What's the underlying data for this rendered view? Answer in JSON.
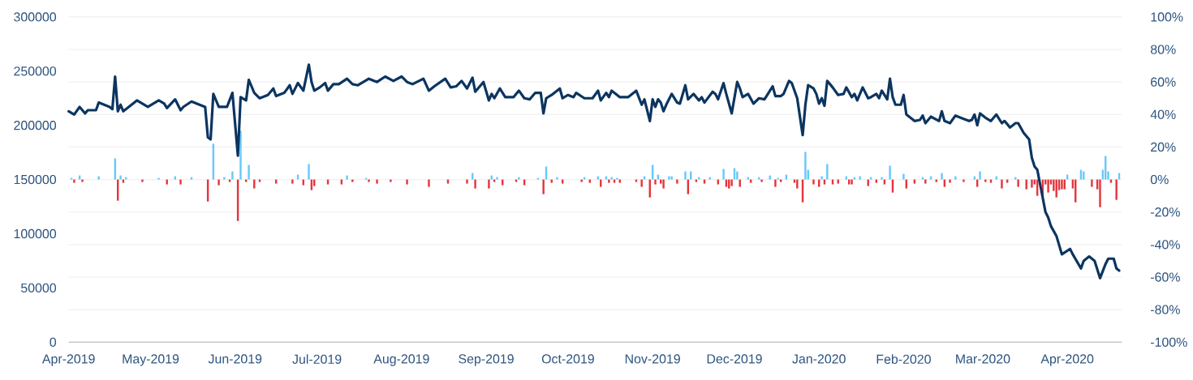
{
  "chart_data": {
    "type": "line",
    "xlim": [
      "2019-04-01",
      "2020-04-21"
    ],
    "xticks": [
      {
        "value": "2019-04-01",
        "label": "Apr-2019"
      },
      {
        "value": "2019-05-01",
        "label": "May-2019"
      },
      {
        "value": "2019-06-01",
        "label": "Jun-2019"
      },
      {
        "value": "2019-07-01",
        "label": "Jul-2019"
      },
      {
        "value": "2019-08-01",
        "label": "Aug-2019"
      },
      {
        "value": "2019-09-01",
        "label": "Sep-2019"
      },
      {
        "value": "2019-10-01",
        "label": "Oct-2019"
      },
      {
        "value": "2019-11-01",
        "label": "Nov-2019"
      },
      {
        "value": "2019-12-01",
        "label": "Dec-2019"
      },
      {
        "value": "2020-01-01",
        "label": "Jan-2020"
      },
      {
        "value": "2020-02-01",
        "label": "Feb-2020"
      },
      {
        "value": "2020-03-01",
        "label": "Mar-2020"
      },
      {
        "value": "2020-04-01",
        "label": "Apr-2020"
      }
    ],
    "ylim": [
      0,
      300000
    ],
    "yticks": [
      0,
      50000,
      100000,
      150000,
      200000,
      250000,
      300000
    ],
    "y2lim": [
      -100,
      100
    ],
    "y2ticks": [
      {
        "value": -100,
        "label": "-100%"
      },
      {
        "value": -80,
        "label": "-80%"
      },
      {
        "value": -60,
        "label": "-60%"
      },
      {
        "value": -40,
        "label": "-40%"
      },
      {
        "value": -20,
        "label": "-20%"
      },
      {
        "value": 0,
        "label": "0%"
      },
      {
        "value": 20,
        "label": "20%"
      },
      {
        "value": 40,
        "label": "40%"
      },
      {
        "value": 60,
        "label": "60%"
      },
      {
        "value": 80,
        "label": "80%"
      },
      {
        "value": 100,
        "label": "100%"
      }
    ],
    "grid": true,
    "series": [
      {
        "type": "bar",
        "axis": "y2",
        "color": "#66c9fb",
        "x": [
          "2019-04-02",
          "2019-04-05",
          "2019-04-12",
          "2019-04-18",
          "2019-04-20",
          "2019-04-22",
          "2019-05-04",
          "2019-05-10",
          "2019-05-16",
          "2019-05-24",
          "2019-05-28",
          "2019-05-31",
          "2019-06-03",
          "2019-06-06",
          "2019-06-24",
          "2019-06-28",
          "2019-07-12",
          "2019-07-19",
          "2019-08-27",
          "2019-09-03",
          "2019-09-05",
          "2019-09-13",
          "2019-09-20",
          "2019-09-23",
          "2019-09-27",
          "2019-10-07",
          "2019-10-12",
          "2019-10-15",
          "2019-10-17",
          "2019-10-19",
          "2019-10-29",
          "2019-11-01",
          "2019-11-03",
          "2019-11-07",
          "2019-11-08",
          "2019-11-13",
          "2019-11-15",
          "2019-11-18",
          "2019-11-22",
          "2019-11-27",
          "2019-12-01",
          "2019-12-02",
          "2019-12-06",
          "2019-12-10",
          "2019-12-14",
          "2019-12-17",
          "2019-12-20",
          "2019-12-27",
          "2019-12-28",
          "2020-01-02",
          "2020-01-04",
          "2020-01-11",
          "2020-01-14",
          "2020-01-16",
          "2020-01-20",
          "2020-01-24",
          "2020-01-27",
          "2020-02-01",
          "2020-02-08",
          "2020-02-11",
          "2020-02-15",
          "2020-02-20",
          "2020-02-27",
          "2020-02-29",
          "2020-03-06",
          "2020-03-13",
          "2020-04-01",
          "2020-04-06",
          "2020-04-07",
          "2020-04-14",
          "2020-04-15",
          "2020-04-16",
          "2020-04-20"
        ],
        "values": [
          1,
          2.5,
          2,
          13,
          2.5,
          1.5,
          1,
          2,
          1.5,
          22,
          1.5,
          5,
          30,
          9,
          3,
          9.5,
          2.5,
          1,
          4,
          2.5,
          1.5,
          1.5,
          1,
          8,
          1.5,
          1.5,
          2,
          2,
          1.5,
          1,
          2,
          9,
          3,
          2,
          2,
          5,
          5,
          1.5,
          1.5,
          6.5,
          7,
          5,
          1.5,
          1.5,
          2.5,
          1,
          3,
          17,
          6,
          2,
          9.5,
          2,
          1.5,
          2,
          1.5,
          1.5,
          8.5,
          3.5,
          1.5,
          2,
          4,
          2,
          2,
          5,
          2,
          1.5,
          3,
          6,
          5,
          6,
          14.5,
          5,
          4
        ]
      },
      {
        "type": "bar",
        "axis": "y2",
        "color": "#e5343d",
        "x": [
          "2019-04-03",
          "2019-04-06",
          "2019-04-19",
          "2019-04-21",
          "2019-04-28",
          "2019-05-07",
          "2019-05-12",
          "2019-05-22",
          "2019-05-26",
          "2019-05-30",
          "2019-06-02",
          "2019-06-05",
          "2019-06-08",
          "2019-06-10",
          "2019-06-16",
          "2019-06-22",
          "2019-06-26",
          "2019-06-29",
          "2019-06-30",
          "2019-07-05",
          "2019-07-10",
          "2019-07-14",
          "2019-07-20",
          "2019-07-23",
          "2019-07-28",
          "2019-08-03",
          "2019-08-11",
          "2019-08-18",
          "2019-08-25",
          "2019-08-28",
          "2019-09-02",
          "2019-09-04",
          "2019-09-07",
          "2019-09-12",
          "2019-09-15",
          "2019-09-22",
          "2019-09-25",
          "2019-09-29",
          "2019-10-06",
          "2019-10-09",
          "2019-10-13",
          "2019-10-16",
          "2019-10-18",
          "2019-10-20",
          "2019-10-26",
          "2019-10-28",
          "2019-10-31",
          "2019-11-02",
          "2019-11-04",
          "2019-11-05",
          "2019-11-10",
          "2019-11-14",
          "2019-11-17",
          "2019-11-20",
          "2019-11-25",
          "2019-11-28",
          "2019-11-29",
          "2019-11-30",
          "2019-12-03",
          "2019-12-07",
          "2019-12-11",
          "2019-12-16",
          "2019-12-18",
          "2019-12-23",
          "2019-12-24",
          "2019-12-26",
          "2019-12-30",
          "2020-01-01",
          "2020-01-03",
          "2020-01-06",
          "2020-01-08",
          "2020-01-12",
          "2020-01-13",
          "2020-01-19",
          "2020-01-22",
          "2020-01-25",
          "2020-01-28",
          "2020-02-02",
          "2020-02-05",
          "2020-02-09",
          "2020-02-13",
          "2020-02-16",
          "2020-02-18",
          "2020-02-23",
          "2020-02-28",
          "2020-03-02",
          "2020-03-04",
          "2020-03-08",
          "2020-03-10",
          "2020-03-14",
          "2020-03-17",
          "2020-03-19",
          "2020-03-20",
          "2020-03-21",
          "2020-03-22",
          "2020-03-23",
          "2020-03-24",
          "2020-03-25",
          "2020-03-26",
          "2020-03-27",
          "2020-03-28",
          "2020-03-29",
          "2020-03-30",
          "2020-03-31",
          "2020-04-03",
          "2020-04-04",
          "2020-04-10",
          "2020-04-12",
          "2020-04-13",
          "2020-04-17",
          "2020-04-19"
        ],
        "values": [
          -2,
          -1.5,
          -13,
          -2,
          -1.5,
          -3,
          -3,
          -13.5,
          -3.5,
          -1.5,
          -25.5,
          -1.5,
          -5.5,
          -1.5,
          -2.5,
          -2.5,
          -3.5,
          -6.5,
          -4,
          -3,
          -3,
          -1.5,
          -1.5,
          -2.5,
          -1.5,
          -3,
          -4.5,
          -2.5,
          -2.5,
          -5.5,
          -5.5,
          -1.5,
          -3.5,
          -1.5,
          -3.5,
          -9,
          -2,
          -2.5,
          -1.5,
          -2,
          -4.5,
          -2,
          -2,
          -2,
          -1.5,
          -4.5,
          -11,
          -3,
          -2.5,
          -5.5,
          -2.5,
          -9,
          -1.5,
          -2.5,
          -3,
          -4.5,
          -5.5,
          -4,
          -4.5,
          -2,
          -1.5,
          -4.5,
          -1.5,
          -2,
          -5.5,
          -14,
          -3,
          -4.5,
          -3,
          -3,
          -2.5,
          -3,
          -3,
          -4,
          -2,
          -3,
          -8,
          -5.5,
          -2.5,
          -2.5,
          -1.5,
          -4.5,
          -2,
          -1.5,
          -4.5,
          -1.5,
          -2,
          -5.5,
          -2,
          -4.5,
          -6,
          -5,
          -3,
          -10,
          null,
          -10,
          -3,
          -8,
          -3,
          -7,
          -11,
          -6.5,
          -6,
          -6,
          -5.5,
          -14,
          -4.5,
          -6,
          -17,
          -2,
          -12.5
        ]
      },
      {
        "color": "#0b3560",
        "x": [
          "2019-04-01",
          "2019-04-03",
          "2019-04-05",
          "2019-04-07",
          "2019-04-08",
          "2019-04-11",
          "2019-04-12",
          "2019-04-16",
          "2019-04-17",
          "2019-04-18",
          "2019-04-19",
          "2019-04-20",
          "2019-04-21",
          "2019-04-23",
          "2019-04-26",
          "2019-04-28",
          "2019-04-30",
          "2019-05-04",
          "2019-05-06",
          "2019-05-07",
          "2019-05-10",
          "2019-05-12",
          "2019-05-13",
          "2019-05-16",
          "2019-05-18",
          "2019-05-21",
          "2019-05-22",
          "2019-05-23",
          "2019-05-24",
          "2019-05-26",
          "2019-05-29",
          "2019-05-31",
          "2019-06-02",
          "2019-06-03",
          "2019-06-05",
          "2019-06-06",
          "2019-06-08",
          "2019-06-10",
          "2019-06-13",
          "2019-06-15",
          "2019-06-16",
          "2019-06-19",
          "2019-06-21",
          "2019-06-22",
          "2019-06-24",
          "2019-06-26",
          "2019-06-28",
          "2019-06-29",
          "2019-06-30",
          "2019-07-02",
          "2019-07-04",
          "2019-07-05",
          "2019-07-07",
          "2019-07-09",
          "2019-07-12",
          "2019-07-14",
          "2019-07-16",
          "2019-07-20",
          "2019-07-23",
          "2019-07-26",
          "2019-07-29",
          "2019-08-01",
          "2019-08-03",
          "2019-08-05",
          "2019-08-09",
          "2019-08-11",
          "2019-08-13",
          "2019-08-17",
          "2019-08-19",
          "2019-08-21",
          "2019-08-23",
          "2019-08-25",
          "2019-08-27",
          "2019-08-28",
          "2019-08-31",
          "2019-09-02",
          "2019-09-03",
          "2019-09-04",
          "2019-09-06",
          "2019-09-08",
          "2019-09-11",
          "2019-09-13",
          "2019-09-15",
          "2019-09-17",
          "2019-09-19",
          "2019-09-21",
          "2019-09-22",
          "2019-09-23",
          "2019-09-25",
          "2019-09-28",
          "2019-09-29",
          "2019-10-01",
          "2019-10-03",
          "2019-10-04",
          "2019-10-07",
          "2019-10-10",
          "2019-10-12",
          "2019-10-13",
          "2019-10-15",
          "2019-10-16",
          "2019-10-17",
          "2019-10-19",
          "2019-10-20",
          "2019-10-23",
          "2019-10-26",
          "2019-10-28",
          "2019-10-29",
          "2019-10-31",
          "2019-11-01",
          "2019-11-02",
          "2019-11-03",
          "2019-11-04",
          "2019-11-05",
          "2019-11-06",
          "2019-11-08",
          "2019-11-10",
          "2019-11-11",
          "2019-11-13",
          "2019-11-14",
          "2019-11-16",
          "2019-11-18",
          "2019-11-19",
          "2019-11-20",
          "2019-11-23",
          "2019-11-24",
          "2019-11-25",
          "2019-11-27",
          "2019-11-28",
          "2019-11-30",
          "2019-12-02",
          "2019-12-03",
          "2019-12-04",
          "2019-12-06",
          "2019-12-08",
          "2019-12-10",
          "2019-12-12",
          "2019-12-15",
          "2019-12-16",
          "2019-12-18",
          "2019-12-19",
          "2019-12-21",
          "2019-12-22",
          "2019-12-24",
          "2019-12-26",
          "2019-12-27",
          "2019-12-28",
          "2019-12-30",
          "2019-12-31",
          "2020-01-01",
          "2020-01-02",
          "2020-01-03",
          "2020-01-04",
          "2020-01-06",
          "2020-01-08",
          "2020-01-10",
          "2020-01-11",
          "2020-01-13",
          "2020-01-14",
          "2020-01-15",
          "2020-01-16",
          "2020-01-17",
          "2020-01-19",
          "2020-01-20",
          "2020-01-22",
          "2020-01-23",
          "2020-01-24",
          "2020-01-26",
          "2020-01-27",
          "2020-01-28",
          "2020-01-29",
          "2020-01-31",
          "2020-02-01",
          "2020-02-02",
          "2020-02-05",
          "2020-02-07",
          "2020-02-08",
          "2020-02-09",
          "2020-02-11",
          "2020-02-14",
          "2020-02-15",
          "2020-02-16",
          "2020-02-18",
          "2020-02-20",
          "2020-02-23",
          "2020-02-25",
          "2020-02-26",
          "2020-02-27",
          "2020-02-28",
          "2020-02-29",
          "2020-03-02",
          "2020-03-04",
          "2020-03-06",
          "2020-03-08",
          "2020-03-09",
          "2020-03-11",
          "2020-03-13",
          "2020-03-14",
          "2020-03-16",
          "2020-03-18",
          "2020-03-19",
          "2020-03-20",
          "2020-03-21",
          "2020-03-24",
          "2020-03-25",
          "2020-03-26",
          "2020-03-28",
          "2020-03-30",
          "2020-04-02",
          "2020-04-03",
          "2020-04-06",
          "2020-04-07",
          "2020-04-09",
          "2020-04-11",
          "2020-04-13",
          "2020-04-15",
          "2020-04-16",
          "2020-04-18",
          "2020-04-19",
          "2020-04-20"
        ],
        "values": [
          213000,
          210000,
          217000,
          211000,
          214000,
          214000,
          221000,
          217000,
          215000,
          245000,
          213000,
          219000,
          213000,
          217000,
          223000,
          220000,
          217000,
          223000,
          220000,
          216000,
          224000,
          214000,
          217000,
          222000,
          220000,
          217000,
          189000,
          187000,
          229000,
          217000,
          217000,
          230000,
          172000,
          226000,
          223000,
          242000,
          230000,
          225000,
          228000,
          234000,
          227000,
          230000,
          237000,
          229000,
          239000,
          232000,
          256000,
          240000,
          232000,
          235000,
          239000,
          232000,
          238000,
          238000,
          243000,
          238000,
          237000,
          243000,
          240000,
          245000,
          241000,
          245000,
          240000,
          238000,
          243000,
          232000,
          236000,
          243000,
          235000,
          236000,
          241000,
          234000,
          244000,
          231000,
          240000,
          223000,
          229000,
          225000,
          234000,
          226000,
          226000,
          232000,
          225000,
          224000,
          230000,
          230000,
          211000,
          225000,
          228000,
          234000,
          225000,
          228000,
          226000,
          230000,
          225000,
          225000,
          232000,
          223000,
          230000,
          226000,
          232000,
          228000,
          226000,
          226000,
          232000,
          219000,
          224000,
          204000,
          224000,
          217000,
          224000,
          221000,
          213000,
          219000,
          229000,
          221000,
          220000,
          237000,
          224000,
          229000,
          223000,
          226000,
          221000,
          231000,
          229000,
          224000,
          239000,
          229000,
          211000,
          240000,
          234000,
          226000,
          229000,
          220000,
          225000,
          224000,
          236000,
          227000,
          227000,
          229000,
          241000,
          239000,
          225000,
          191000,
          219000,
          237000,
          234000,
          229000,
          220000,
          225000,
          218000,
          241000,
          235000,
          228000,
          229000,
          235000,
          226000,
          229000,
          223000,
          229000,
          235000,
          225000,
          226000,
          229000,
          225000,
          232000,
          224000,
          243000,
          226000,
          219000,
          219000,
          228000,
          210000,
          204000,
          205000,
          209000,
          202000,
          208000,
          204000,
          213000,
          204000,
          202000,
          209000,
          206000,
          204000,
          205000,
          210000,
          200000,
          211000,
          207000,
          204000,
          210000,
          202000,
          204000,
          198000,
          202000,
          202000,
          193000,
          187000,
          170000,
          162000,
          159000,
          120000,
          115000,
          107000,
          98000,
          81000,
          86000,
          81000,
          68000,
          75000,
          79000,
          75000,
          59000,
          72000,
          77000,
          77000,
          68000,
          66000
        ]
      }
    ]
  }
}
